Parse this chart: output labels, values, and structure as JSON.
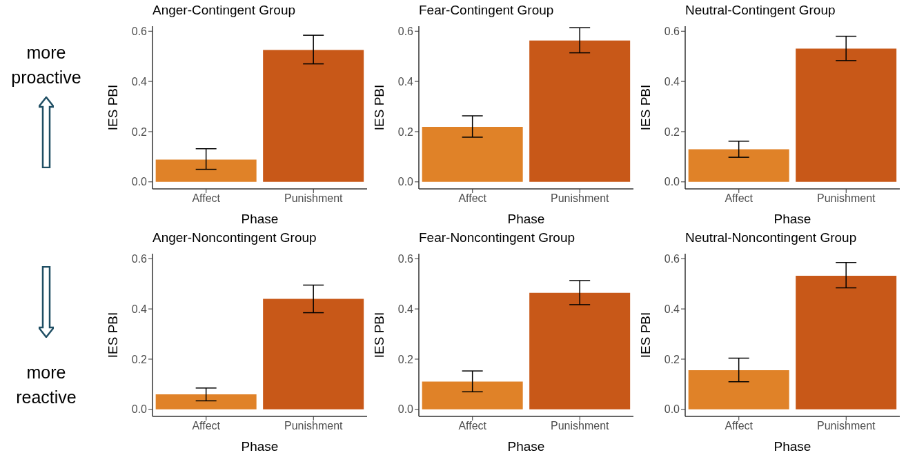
{
  "chart_data": [
    {
      "type": "bar",
      "title": "Anger-Contingent Group",
      "xlabel": "Phase",
      "ylabel": "IES PBI",
      "categories": [
        "Affect",
        "Punishment"
      ],
      "values": [
        0.089,
        0.525
      ],
      "colors": [
        "#e08228",
        "#c85818"
      ],
      "errors": [
        [
          0.05,
          0.132
        ],
        [
          0.47,
          0.584
        ]
      ],
      "ylim": [
        -0.028,
        0.62
      ],
      "yticks": [
        {
          "value": 0,
          "label": "0.0"
        },
        {
          "value": 0.2,
          "label": "0.2"
        },
        {
          "value": 0.4,
          "label": "0.4"
        },
        {
          "value": 0.6,
          "label": "0.6"
        }
      ],
      "annotations": [
        "more proactive"
      ]
    },
    {
      "type": "bar",
      "title": "Fear-Contingent Group",
      "xlabel": "Phase",
      "ylabel": "IES PBI",
      "categories": [
        "Affect",
        "Punishment"
      ],
      "values": [
        0.219,
        0.563
      ],
      "colors": [
        "#e08228",
        "#c85818"
      ],
      "errors": [
        [
          0.178,
          0.263
        ],
        [
          0.514,
          0.614
        ]
      ],
      "ylim": [
        -0.028,
        0.62
      ],
      "yticks": [
        {
          "value": 0,
          "label": "0.0"
        },
        {
          "value": 0.2,
          "label": "0.2"
        },
        {
          "value": 0.4,
          "label": "0.4"
        },
        {
          "value": 0.6,
          "label": "0.6"
        }
      ]
    },
    {
      "type": "bar",
      "title": "Neutral-Contingent Group",
      "xlabel": "Phase",
      "ylabel": "IES PBI",
      "categories": [
        "Affect",
        "Punishment"
      ],
      "values": [
        0.13,
        0.531
      ],
      "colors": [
        "#e08228",
        "#c85818"
      ],
      "errors": [
        [
          0.098,
          0.162
        ],
        [
          0.483,
          0.58
        ]
      ],
      "ylim": [
        -0.028,
        0.62
      ],
      "yticks": [
        {
          "value": 0,
          "label": "0.0"
        },
        {
          "value": 0.2,
          "label": "0.2"
        },
        {
          "value": 0.4,
          "label": "0.4"
        },
        {
          "value": 0.6,
          "label": "0.6"
        }
      ]
    },
    {
      "type": "bar",
      "title": "Anger-Noncontingent Group",
      "xlabel": "Phase",
      "ylabel": "IES PBI",
      "categories": [
        "Affect",
        "Punishment"
      ],
      "values": [
        0.06,
        0.44
      ],
      "colors": [
        "#e08228",
        "#c85818"
      ],
      "errors": [
        [
          0.034,
          0.085
        ],
        [
          0.385,
          0.495
        ]
      ],
      "ylim": [
        -0.028,
        0.62
      ],
      "yticks": [
        {
          "value": 0,
          "label": "0.0"
        },
        {
          "value": 0.2,
          "label": "0.2"
        },
        {
          "value": 0.4,
          "label": "0.4"
        },
        {
          "value": 0.6,
          "label": "0.6"
        }
      ],
      "annotations": [
        "more reactive"
      ]
    },
    {
      "type": "bar",
      "title": "Fear-Noncontingent Group",
      "xlabel": "Phase",
      "ylabel": "IES PBI",
      "categories": [
        "Affect",
        "Punishment"
      ],
      "values": [
        0.111,
        0.464
      ],
      "colors": [
        "#e08228",
        "#c85818"
      ],
      "errors": [
        [
          0.07,
          0.153
        ],
        [
          0.417,
          0.513
        ]
      ],
      "ylim": [
        -0.028,
        0.62
      ],
      "yticks": [
        {
          "value": 0,
          "label": "0.0"
        },
        {
          "value": 0.2,
          "label": "0.2"
        },
        {
          "value": 0.4,
          "label": "0.4"
        },
        {
          "value": 0.6,
          "label": "0.6"
        }
      ]
    },
    {
      "type": "bar",
      "title": "Neutral-Noncontingent Group",
      "xlabel": "Phase",
      "ylabel": "IES PBI",
      "categories": [
        "Affect",
        "Punishment"
      ],
      "values": [
        0.156,
        0.532
      ],
      "colors": [
        "#e08228",
        "#c85818"
      ],
      "errors": [
        [
          0.11,
          0.204
        ],
        [
          0.484,
          0.585
        ]
      ],
      "ylim": [
        -0.028,
        0.62
      ],
      "yticks": [
        {
          "value": 0,
          "label": "0.0"
        },
        {
          "value": 0.2,
          "label": "0.2"
        },
        {
          "value": 0.4,
          "label": "0.4"
        },
        {
          "value": 0.6,
          "label": "0.6"
        }
      ]
    }
  ]
}
